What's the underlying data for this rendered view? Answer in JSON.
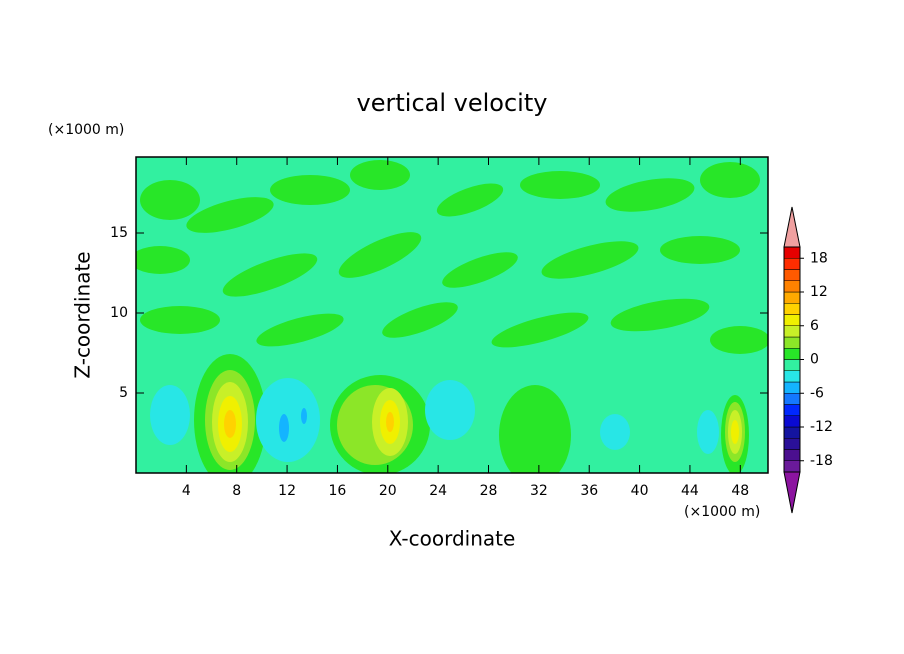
{
  "chart_data": {
    "type": "contour",
    "title": "vertical velocity",
    "x_label": "X-coordinate",
    "y_label": "Z-coordinate",
    "x_unit": "(×1000 m)",
    "y_unit": "(×1000 m)",
    "xlim": [
      0,
      50.2
    ],
    "ylim": [
      0,
      19.75
    ],
    "xticks": [
      4,
      8,
      12,
      16,
      20,
      24,
      28,
      32,
      36,
      40,
      44,
      48
    ],
    "yticks": [
      5,
      10,
      15
    ],
    "colorbar": {
      "levels": [
        -20,
        -18,
        -16,
        -14,
        -12,
        -10,
        -8,
        -6,
        -4,
        -2,
        0,
        2,
        4,
        6,
        8,
        10,
        12,
        14,
        16,
        18,
        20
      ],
      "colors": [
        "#6a1a9a",
        "#4b0f8f",
        "#2a1098",
        "#1414a0",
        "#0a0ad2",
        "#0028ff",
        "#1478ff",
        "#14b4ff",
        "#28e6e6",
        "#32f0a0",
        "#28e628",
        "#8ce628",
        "#c8f028",
        "#f0f000",
        "#ffd200",
        "#ffaa00",
        "#ff8200",
        "#ff5a00",
        "#ff2d00",
        "#e60000"
      ],
      "ticks": [
        -18,
        -12,
        -6,
        0,
        6,
        12,
        18
      ],
      "over_color": "#f0a0a0",
      "under_color": "#8c14a0"
    }
  }
}
